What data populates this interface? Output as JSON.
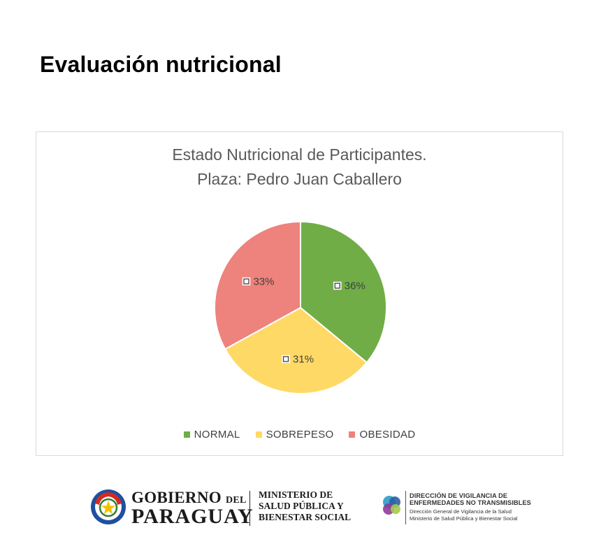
{
  "page": {
    "title": "Evaluación nutricional"
  },
  "colors": {
    "normal": "#70AD47",
    "sobrepeso": "#FFD966",
    "obesidad": "#EE827C"
  },
  "chart_data": {
    "type": "pie",
    "title": [
      "Estado Nutricional de Participantes.",
      "Plaza: Pedro Juan Caballero"
    ],
    "categories": [
      "NORMAL",
      "SOBREPESO",
      "OBESIDAD"
    ],
    "values": [
      36,
      31,
      33
    ],
    "data_labels": [
      "36%",
      "31%",
      "33%"
    ],
    "colors": [
      "#70AD47",
      "#FFD966",
      "#EE827C"
    ],
    "legend_position": "bottom"
  },
  "footer": {
    "gov_line1": "GOBIERNO",
    "gov_del": "DEL",
    "gov_line2": "PARAGUAY",
    "ministry": [
      "MINISTERIO DE",
      "SALUD PÚBLICA Y",
      "BIENESTAR SOCIAL"
    ],
    "dv": [
      "DIRECCIÓN DE VIGILANCIA DE",
      "ENFERMEDADES NO TRANSMISIBLES",
      "Dirección General de Vigilancia de la Salud",
      "Ministerio de Salud Pública y Bienestar Social"
    ]
  }
}
